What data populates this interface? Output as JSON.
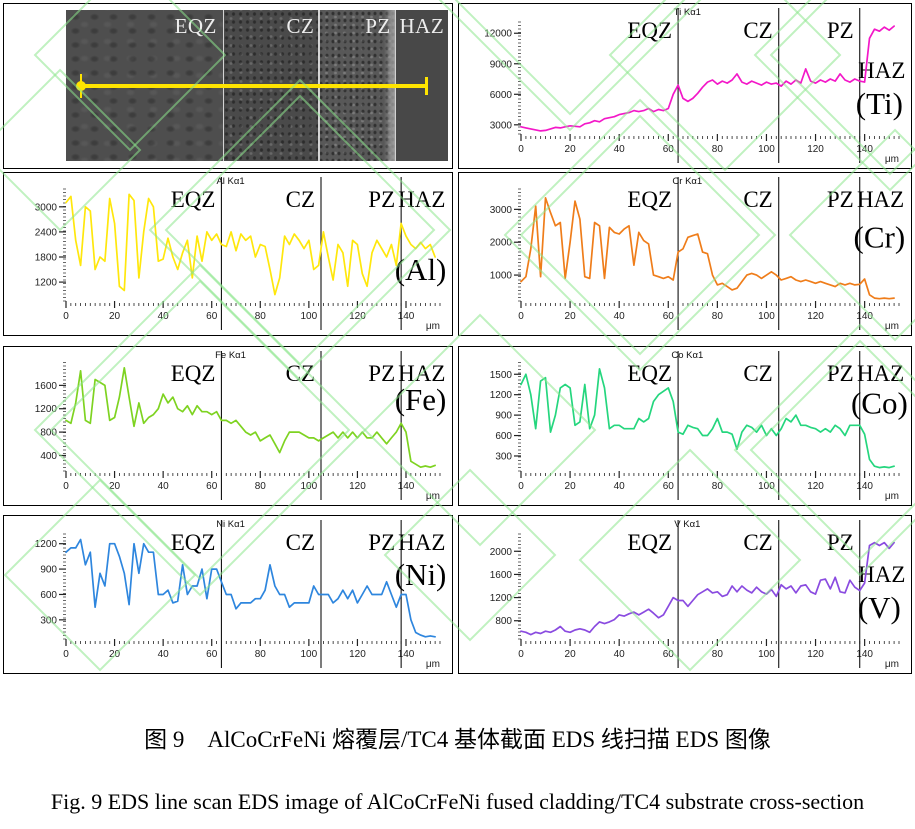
{
  "figure": {
    "sem": {
      "zone_labels": [
        "EQZ",
        "CZ",
        "PZ",
        "HAZ"
      ],
      "scan_line_color": "#ffe400"
    },
    "watermark_color": "#8ce58c",
    "chart_data": [
      {
        "type": "line",
        "element": "Ti",
        "title": "Ti Kα1",
        "element_label": "(Ti)",
        "series_color": "#f318c8",
        "zone_labels": [
          "EQZ",
          "CZ",
          "PZ",
          "HAZ"
        ],
        "zone_boundaries_um": [
          64,
          105,
          138
        ],
        "haz_placement": "right-middle",
        "haz_y_frac": 0.45,
        "element_y_frac": 0.67,
        "xlabel": "μm",
        "xlim": [
          0,
          154
        ],
        "x_ticks": [
          0,
          20,
          40,
          60,
          80,
          100,
          120,
          140
        ],
        "ylim": [
          1900,
          13400
        ],
        "y_ticks": [
          3000,
          6000,
          9000,
          12000
        ],
        "x_start": 0,
        "x_step": 2,
        "values": [
          2800,
          2700,
          2600,
          2500,
          2400,
          2450,
          2600,
          2750,
          2700,
          2800,
          2900,
          2850,
          2800,
          3100,
          3200,
          3400,
          3300,
          3600,
          3700,
          3800,
          4000,
          4100,
          4200,
          4400,
          4300,
          4400,
          4600,
          4300,
          4500,
          4400,
          4600,
          6000,
          6900,
          5600,
          5300,
          5600,
          6100,
          6700,
          7200,
          7400,
          7000,
          7300,
          7100,
          7400,
          8000,
          7200,
          7000,
          7300,
          7100,
          6900,
          7200,
          7000,
          7100,
          6800,
          7300,
          7000,
          7400,
          7100,
          8500,
          7300,
          7100,
          7400,
          7200,
          7500,
          7300,
          8000,
          7400,
          7200,
          7500,
          7300,
          7200,
          11500,
          12400,
          12200,
          12600,
          12300,
          12700
        ]
      },
      {
        "type": "line",
        "element": "Al",
        "title": "Al Kα1",
        "element_label": "(Al)",
        "series_color": "#ffe70c",
        "zone_labels": [
          "EQZ",
          "CZ",
          "PZ",
          "HAZ"
        ],
        "zone_boundaries_um": [
          64,
          105,
          138
        ],
        "haz_placement": "top",
        "haz_y_frac": 0,
        "element_y_frac": 0.66,
        "xlabel": "μm",
        "xlim": [
          0,
          154
        ],
        "x_ticks": [
          0,
          20,
          40,
          60,
          80,
          100,
          120,
          140
        ],
        "ylim": [
          700,
          3450
        ],
        "y_ticks": [
          1200,
          1800,
          2400,
          3000
        ],
        "x_start": 0,
        "x_step": 2,
        "values": [
          3100,
          3250,
          2200,
          1600,
          3000,
          2900,
          1500,
          1800,
          1700,
          3200,
          2600,
          1100,
          1000,
          3300,
          3150,
          1300,
          2400,
          3200,
          3000,
          1700,
          1750,
          2250,
          1800,
          1500,
          1900,
          2200,
          1300,
          2300,
          1700,
          2400,
          2200,
          2350,
          2100,
          2050,
          2400,
          1950,
          2350,
          2200,
          2300,
          1800,
          2100,
          2050,
          1500,
          900,
          1300,
          2300,
          2100,
          2350,
          2200,
          2000,
          2200,
          1500,
          1600,
          2400,
          1800,
          1250,
          2100,
          1900,
          1100,
          2200,
          2100,
          1400,
          1100,
          1900,
          2200,
          2000,
          1800,
          2100,
          1600,
          2600,
          2300,
          2100,
          2000,
          2150,
          2000,
          2100,
          1800
        ]
      },
      {
        "type": "line",
        "element": "Cr",
        "title": "Cr Kα1",
        "element_label": "(Cr)",
        "series_color": "#ef7d1a",
        "zone_labels": [
          "EQZ",
          "CZ",
          "PZ",
          "HAZ"
        ],
        "zone_boundaries_um": [
          64,
          105,
          138
        ],
        "haz_placement": "top",
        "haz_y_frac": 0,
        "element_y_frac": 0.46,
        "xlabel": "μm",
        "xlim": [
          0,
          154
        ],
        "x_ticks": [
          0,
          20,
          40,
          60,
          80,
          100,
          120,
          140
        ],
        "ylim": [
          150,
          3650
        ],
        "y_ticks": [
          1000,
          2000,
          3000
        ],
        "x_start": 0,
        "x_step": 2,
        "values": [
          800,
          950,
          1800,
          3100,
          950,
          3350,
          2900,
          2500,
          2600,
          900,
          2000,
          3250,
          2700,
          950,
          900,
          2600,
          2500,
          900,
          2450,
          2300,
          2250,
          2400,
          2500,
          1300,
          2300,
          2050,
          1950,
          1000,
          950,
          900,
          950,
          850,
          1700,
          1800,
          2150,
          2200,
          2250,
          1700,
          1650,
          1000,
          700,
          750,
          650,
          550,
          600,
          800,
          1000,
          1050,
          1000,
          900,
          1000,
          1100,
          1000,
          850,
          900,
          950,
          850,
          800,
          850,
          800,
          750,
          800,
          750,
          700,
          650,
          750,
          700,
          750,
          700,
          720,
          880,
          400,
          300,
          280,
          300,
          280,
          300
        ]
      },
      {
        "type": "line",
        "element": "Fe",
        "title": "Fe Kα1",
        "element_label": "(Fe)",
        "series_color": "#7ed321",
        "zone_labels": [
          "EQZ",
          "CZ",
          "PZ",
          "HAZ"
        ],
        "zone_boundaries_um": [
          64,
          105,
          138
        ],
        "haz_placement": "top",
        "haz_y_frac": 0,
        "element_y_frac": 0.4,
        "xlabel": "μm",
        "xlim": [
          0,
          154
        ],
        "x_ticks": [
          0,
          20,
          40,
          60,
          80,
          100,
          120,
          140
        ],
        "ylim": [
          100,
          2000
        ],
        "y_ticks": [
          400,
          800,
          1200,
          1600
        ],
        "x_start": 0,
        "x_step": 2,
        "values": [
          1000,
          950,
          1300,
          1850,
          1000,
          950,
          1700,
          1650,
          1600,
          1000,
          1050,
          1400,
          1900,
          1400,
          900,
          1300,
          950,
          1050,
          1100,
          1200,
          1450,
          1300,
          1400,
          1200,
          1150,
          1250,
          1100,
          1250,
          1150,
          1150,
          1100,
          1150,
          1000,
          1000,
          950,
          1000,
          900,
          800,
          750,
          800,
          650,
          700,
          750,
          600,
          450,
          650,
          800,
          800,
          800,
          750,
          700,
          700,
          650,
          700,
          750,
          800,
          700,
          800,
          700,
          800,
          700,
          800,
          700,
          700,
          800,
          700,
          600,
          700,
          800,
          950,
          800,
          300,
          250,
          200,
          220,
          200,
          230
        ]
      },
      {
        "type": "line",
        "element": "Co",
        "title": "Co Kα1",
        "element_label": "(Co)",
        "series_color": "#25d67e",
        "zone_labels": [
          "EQZ",
          "CZ",
          "PZ",
          "HAZ"
        ],
        "zone_boundaries_um": [
          64,
          105,
          138
        ],
        "haz_placement": "top",
        "haz_y_frac": 0,
        "element_y_frac": 0.42,
        "xlabel": "μm",
        "xlim": [
          0,
          154
        ],
        "x_ticks": [
          0,
          20,
          40,
          60,
          80,
          100,
          120,
          140
        ],
        "ylim": [
          50,
          1680
        ],
        "y_ticks": [
          300,
          600,
          900,
          1200,
          1500
        ],
        "x_start": 0,
        "x_step": 2,
        "values": [
          1350,
          1500,
          1200,
          700,
          1400,
          1450,
          650,
          900,
          1300,
          1350,
          1300,
          750,
          800,
          1350,
          700,
          900,
          1580,
          1300,
          700,
          750,
          750,
          700,
          700,
          700,
          850,
          800,
          850,
          1100,
          1200,
          1250,
          1300,
          1100,
          650,
          620,
          750,
          720,
          700,
          600,
          600,
          700,
          850,
          650,
          650,
          620,
          400,
          650,
          750,
          720,
          650,
          750,
          600,
          700,
          600,
          700,
          850,
          800,
          900,
          750,
          750,
          720,
          700,
          650,
          700,
          650,
          750,
          700,
          600,
          750,
          750,
          750,
          620,
          250,
          150,
          130,
          140,
          130,
          150
        ]
      },
      {
        "type": "line",
        "element": "Ni",
        "title": "Ni Kα1",
        "element_label": "(Ni)",
        "series_color": "#2e86de",
        "zone_labels": [
          "EQZ",
          "CZ",
          "PZ",
          "HAZ"
        ],
        "zone_boundaries_um": [
          64,
          105,
          138
        ],
        "haz_placement": "top",
        "haz_y_frac": 0,
        "element_y_frac": 0.44,
        "xlabel": "μm",
        "xlim": [
          0,
          154
        ],
        "x_ticks": [
          0,
          20,
          40,
          60,
          80,
          100,
          120,
          140
        ],
        "ylim": [
          50,
          1350
        ],
        "y_ticks": [
          300,
          600,
          900,
          1200
        ],
        "x_start": 0,
        "x_step": 2,
        "values": [
          1100,
          1150,
          1150,
          1250,
          950,
          1100,
          450,
          850,
          700,
          1200,
          1200,
          1050,
          850,
          480,
          1200,
          850,
          1200,
          1100,
          1100,
          600,
          600,
          650,
          500,
          520,
          950,
          600,
          700,
          700,
          900,
          550,
          900,
          900,
          750,
          600,
          600,
          430,
          500,
          500,
          500,
          550,
          550,
          650,
          950,
          700,
          600,
          600,
          450,
          500,
          500,
          500,
          500,
          700,
          600,
          600,
          600,
          500,
          550,
          650,
          550,
          650,
          500,
          600,
          700,
          600,
          600,
          600,
          750,
          600,
          450,
          600,
          600,
          300,
          150,
          120,
          100,
          110,
          100
        ]
      },
      {
        "type": "line",
        "element": "V",
        "title": "V Kα1",
        "element_label": "(V)",
        "series_color": "#8a4be0",
        "zone_labels": [
          "EQZ",
          "CZ",
          "PZ",
          "HAZ"
        ],
        "zone_boundaries_um": [
          64,
          105,
          138
        ],
        "haz_placement": "right-middle",
        "haz_y_frac": 0.42,
        "element_y_frac": 0.65,
        "xlabel": "μm",
        "xlim": [
          0,
          154
        ],
        "x_ticks": [
          0,
          20,
          40,
          60,
          80,
          100,
          120,
          140
        ],
        "ylim": [
          450,
          2350
        ],
        "y_ticks": [
          800,
          1200,
          1600,
          2000
        ],
        "x_start": 0,
        "x_step": 2,
        "values": [
          620,
          600,
          560,
          600,
          580,
          620,
          600,
          640,
          700,
          620,
          600,
          640,
          660,
          640,
          600,
          700,
          780,
          750,
          780,
          820,
          900,
          880,
          920,
          950,
          900,
          950,
          1000,
          930,
          850,
          900,
          1050,
          1200,
          1150,
          1150,
          1050,
          1150,
          1250,
          1300,
          1350,
          1280,
          1300,
          1220,
          1250,
          1400,
          1300,
          1400,
          1330,
          1280,
          1380,
          1300,
          1260,
          1340,
          1220,
          1420,
          1350,
          1400,
          1280,
          1400,
          1420,
          1300,
          1260,
          1500,
          1520,
          1350,
          1550,
          1300,
          1280,
          1500,
          1380,
          1320,
          1450,
          2100,
          2150,
          2100,
          2150,
          2050,
          2150
        ]
      }
    ]
  },
  "captions": {
    "chinese": "图 9　AlCoCrFeNi 熔覆层/TC4 基体截面 EDS 线扫描 EDS 图像",
    "english": "Fig. 9 EDS line scan EDS image of AlCoCrFeNi fused cladding/TC4 substrate cross-section"
  }
}
